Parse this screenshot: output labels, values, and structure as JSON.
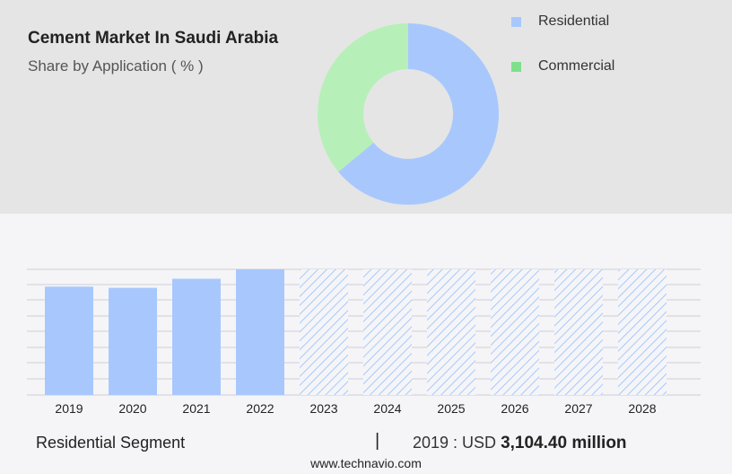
{
  "chart_data": [
    {
      "type": "pie",
      "title": "Cement Market In Saudi Arabia",
      "subtitle": "Share by Application ( % )",
      "donut": true,
      "legend_position": "top-right",
      "slices": [
        {
          "label": "Residential",
          "value": 64,
          "color": "#a8c8fd"
        },
        {
          "label": "Commercial",
          "value": 36,
          "color": "#b7efb9"
        }
      ],
      "legend_swatch_colors": [
        "#a8c8fd",
        "#7ee08c"
      ]
    },
    {
      "type": "bar",
      "categories": [
        "2019",
        "2020",
        "2021",
        "2022",
        "2023",
        "2024",
        "2025",
        "2026",
        "2027",
        "2028"
      ],
      "values": [
        3104.4,
        3070,
        3330,
        3600,
        3600,
        3600,
        3600,
        3600,
        3600,
        3600
      ],
      "forecast_from": "2023",
      "ylim": [
        0,
        3600
      ],
      "grid": true,
      "color": "#a8c8fd",
      "forecast_style": "hatched"
    }
  ],
  "footer": {
    "segment_label": "Residential Segment",
    "separator": "|",
    "year_prefix": "2019 : USD",
    "value": "3,104.40 million"
  },
  "source": "www.technavio.com"
}
